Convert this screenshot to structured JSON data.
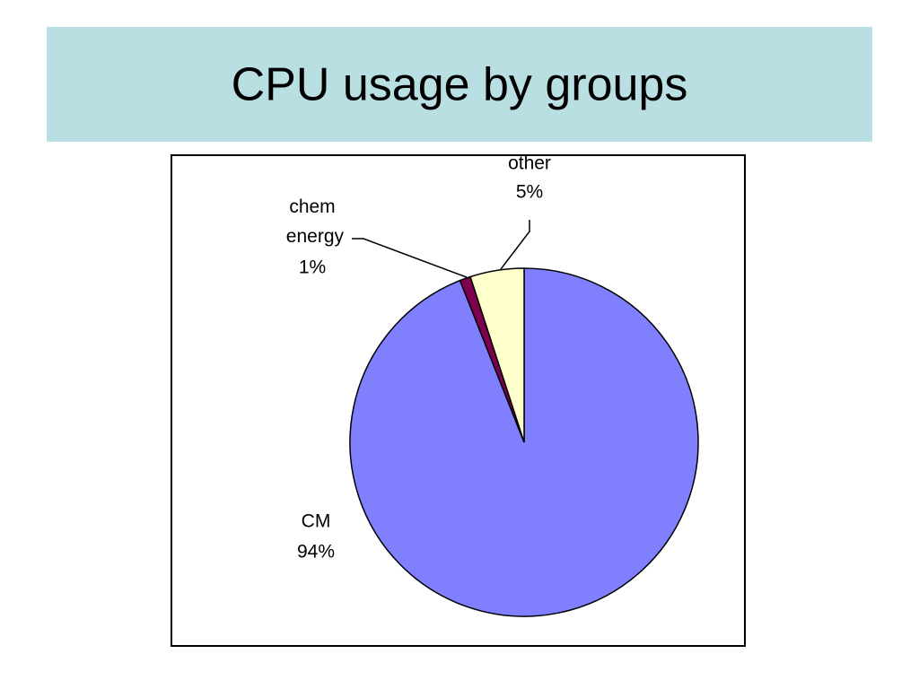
{
  "chart_data": {
    "type": "pie",
    "title": "CPU usage by groups",
    "categories": [
      "CM",
      "chem energy",
      "other"
    ],
    "values": [
      94,
      1,
      5
    ],
    "value_labels": [
      "94%",
      "1%",
      "5%"
    ],
    "colors": [
      "#8080ff",
      "#800050",
      "#ffffcc"
    ]
  }
}
